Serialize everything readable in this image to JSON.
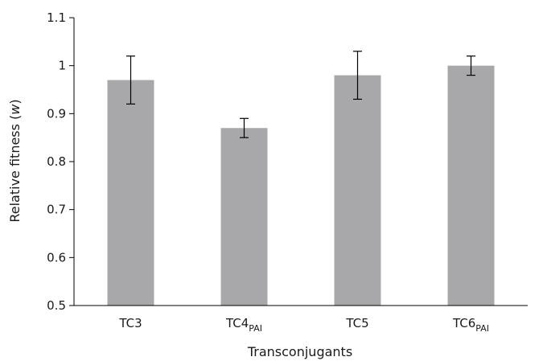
{
  "chart_data": {
    "type": "bar",
    "categories": [
      {
        "main": "TC3",
        "sub": ""
      },
      {
        "main": "TC4",
        "sub": "PAI"
      },
      {
        "main": "TC5",
        "sub": ""
      },
      {
        "main": "TC6",
        "sub": "PAI"
      }
    ],
    "values": [
      0.97,
      0.87,
      0.98,
      1.0
    ],
    "error_low": [
      0.92,
      0.85,
      0.93,
      0.98
    ],
    "error_high": [
      1.02,
      0.89,
      1.03,
      1.02
    ],
    "xlabel": "Transconjugants",
    "ylabel": {
      "prefix": "Relative fitness (",
      "symbol": "w",
      "suffix": ")"
    },
    "ylim": [
      0.5,
      1.1
    ],
    "yticks": [
      "0.5",
      "0.6",
      "0.7",
      "0.8",
      "0.9",
      "1",
      "1.1"
    ],
    "bar_color": "#a8a8aa",
    "grid": false,
    "legend": "none"
  }
}
